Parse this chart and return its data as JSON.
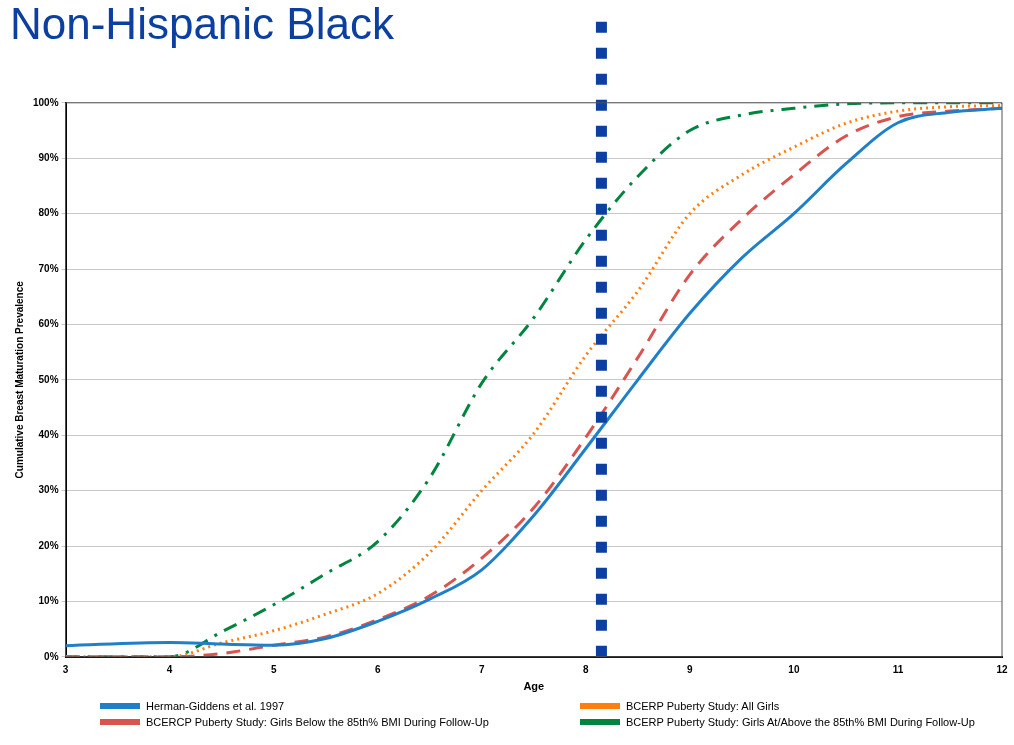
{
  "chart_data": {
    "type": "line",
    "title": "Non-Hispanic Black",
    "xlabel": "Age",
    "ylabel": "Cumulative Breast Maturation Prevalence",
    "xlim": [
      3,
      12
    ],
    "xticks": [
      3,
      4,
      5,
      6,
      7,
      8,
      9,
      10,
      11,
      12
    ],
    "ylim": [
      0,
      100
    ],
    "yticks": [
      {
        "value": 0,
        "label": "0%"
      },
      {
        "value": 10,
        "label": "10%"
      },
      {
        "value": 20,
        "label": "20%"
      },
      {
        "value": 30,
        "label": "30%"
      },
      {
        "value": 40,
        "label": "40%"
      },
      {
        "value": 50,
        "label": "50%"
      },
      {
        "value": 60,
        "label": "60%"
      },
      {
        "value": 70,
        "label": "70%"
      },
      {
        "value": 80,
        "label": "80%"
      },
      {
        "value": 90,
        "label": "90%"
      },
      {
        "value": 100,
        "label": "100%"
      }
    ],
    "grid": "y",
    "legend": "bottom",
    "marker": "none",
    "ref_lines": [
      {
        "axis": "x",
        "value": 8.15,
        "color": "#0b3fa0",
        "line_style": "dotted"
      }
    ],
    "series": [
      {
        "name": "Herman-Giddens et al. 1997",
        "color": "#1f7fc8",
        "line_style": "solid",
        "x": [
          3,
          4,
          4.5,
          5,
          5.5,
          6,
          6.5,
          7,
          7.5,
          8,
          8.5,
          9,
          9.5,
          10,
          10.5,
          11,
          11.5,
          12
        ],
        "values": [
          2,
          2.6,
          2.3,
          2.1,
          3.3,
          6.4,
          10.4,
          15.7,
          25.5,
          37.6,
          50,
          62,
          72,
          80,
          89,
          96.4,
          98.3,
          99
        ]
      },
      {
        "name": "BCERP Puberty Study: All Girls",
        "color": "#ff7f0e",
        "line_style": "dotted",
        "x": [
          3,
          4,
          4.5,
          5,
          5.5,
          6,
          6.5,
          7,
          7.5,
          8,
          8.5,
          9,
          9.5,
          10,
          10.5,
          11,
          11.5,
          12
        ],
        "values": [
          0,
          0,
          2.5,
          4.7,
          7.7,
          11.4,
          18.8,
          30,
          40.3,
          54.4,
          66,
          80,
          87,
          92,
          96.3,
          98.5,
          99.3,
          99.5
        ]
      },
      {
        "name": "BCERCP Puberty Study: Girls Below the 85th% BMI During Follow-Up",
        "color": "#d9534f",
        "line_style": "dashed",
        "x": [
          3,
          4,
          4.5,
          5,
          5.5,
          6,
          6.5,
          7,
          7.5,
          8,
          8.5,
          9,
          9.5,
          10,
          10.5,
          11,
          11.5,
          12
        ],
        "values": [
          0,
          0,
          0.6,
          2.1,
          3.6,
          6.7,
          11,
          17.8,
          26.9,
          39.6,
          54,
          69,
          79,
          87,
          94,
          97.5,
          98.5,
          99
        ]
      },
      {
        "name": "BCERP Puberty Study: Girls At/Above the 85th% BMI During Follow-Up",
        "color": "#00853f",
        "line_style": "dashdot",
        "x": [
          3,
          4,
          4.5,
          5,
          5.5,
          6,
          6.5,
          7,
          7.5,
          8,
          8.5,
          9,
          9.5,
          10,
          10.5,
          11,
          12
        ],
        "values": [
          0,
          0,
          4.5,
          9.4,
          15,
          20.8,
          32.3,
          49.4,
          61.2,
          75.3,
          86.7,
          95,
          97.8,
          99,
          99.8,
          100,
          100
        ]
      }
    ]
  }
}
